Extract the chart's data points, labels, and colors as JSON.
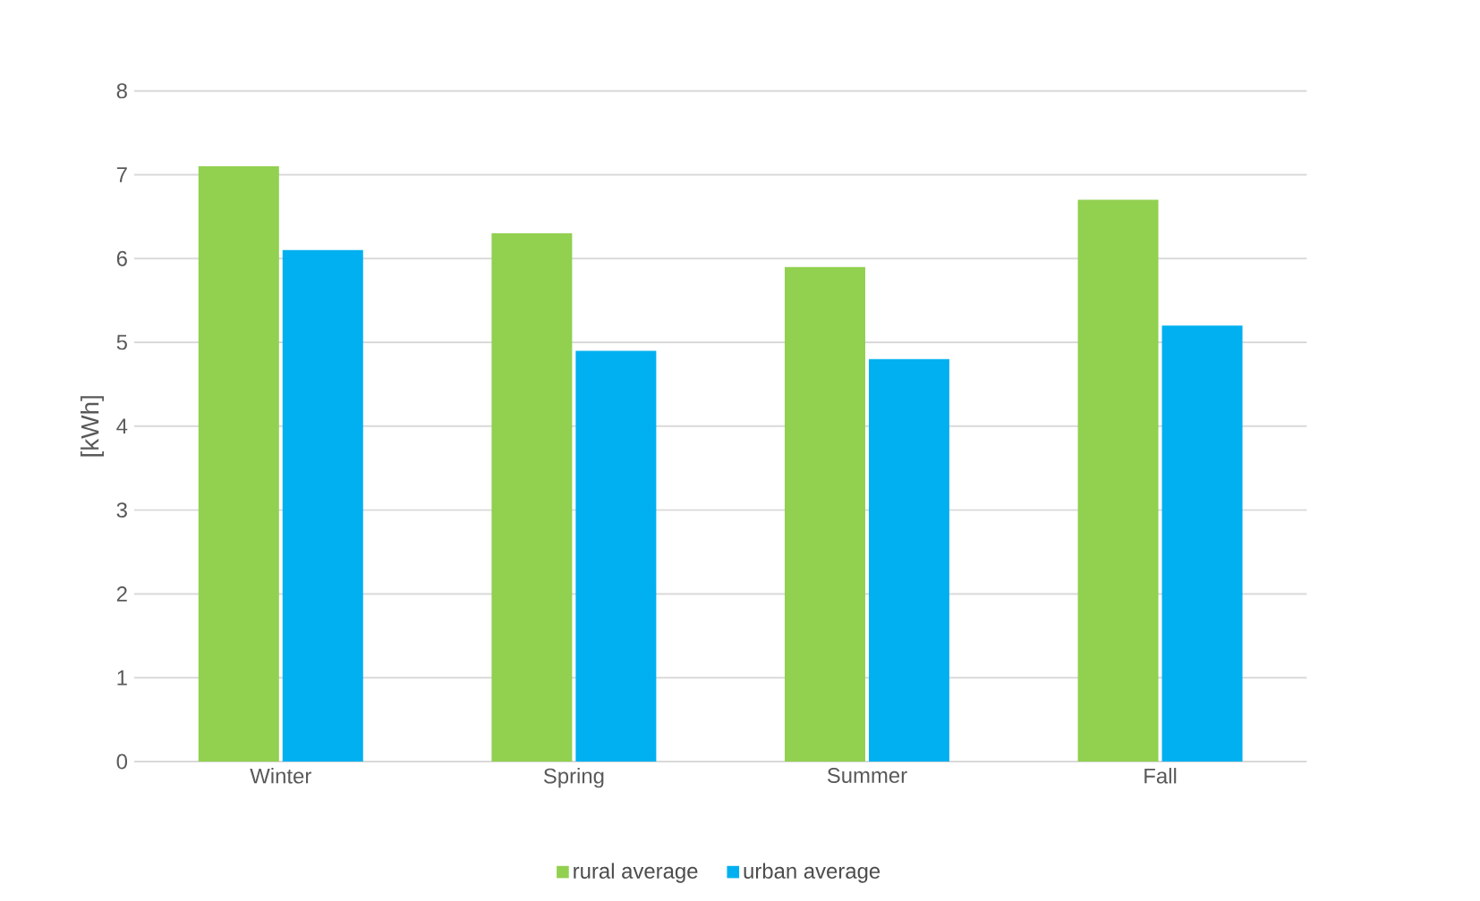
{
  "chart_data": {
    "type": "bar",
    "ylabel": "[kWh]",
    "categories": [
      "Winter",
      "Spring",
      "Summer",
      "Fall"
    ],
    "series": [
      {
        "name": "rural average",
        "color": "#92d050",
        "values": [
          7.1,
          6.3,
          5.9,
          6.7
        ]
      },
      {
        "name": "urban average",
        "color": "#00b0f0",
        "values": [
          6.1,
          4.9,
          4.8,
          5.2
        ]
      }
    ],
    "ylim": [
      0,
      8
    ],
    "yticks": [
      0,
      1,
      2,
      3,
      4,
      5,
      6,
      7,
      8
    ],
    "grid": "y",
    "legend": "bottom"
  }
}
